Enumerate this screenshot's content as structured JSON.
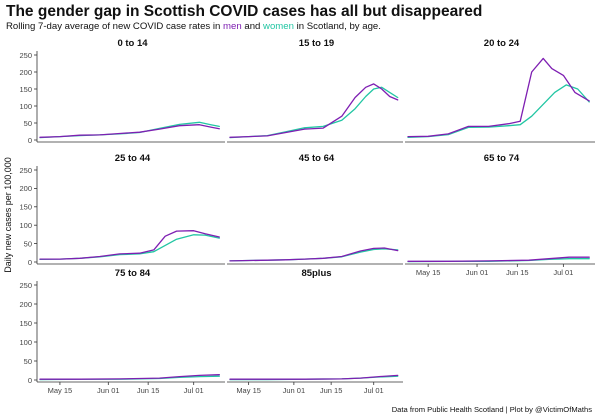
{
  "header": {
    "title": "The gender gap in Scottish COVID cases has all but disappeared",
    "subtitle_prefix": "Rolling 7-day average of new COVID case rates in ",
    "subtitle_men": "men",
    "subtitle_and": " and ",
    "subtitle_women": "women",
    "subtitle_suffix": " in Scotland, by age."
  },
  "caption": "Data from Public Health Scotland | Plot by @VictimOfMaths",
  "colors": {
    "men": "#7e1fb2",
    "women": "#22c6a3",
    "axis": "#333333",
    "text": "#111111"
  },
  "chart_data": {
    "type": "line",
    "ylabel": "Daily new cases per 100,000",
    "xlabel": "",
    "ylim": [
      0,
      250
    ],
    "yticks": [
      0,
      50,
      100,
      150,
      200,
      250
    ],
    "xlim": [
      "2021-05-08",
      "2021-07-12"
    ],
    "xticks": [
      {
        "date": "2021-05-15",
        "label": "May 15"
      },
      {
        "date": "2021-06-01",
        "label": "Jun 01"
      },
      {
        "date": "2021-06-15",
        "label": "Jun 15"
      },
      {
        "date": "2021-07-01",
        "label": "Jul 01"
      }
    ],
    "series_names": [
      "men",
      "women"
    ],
    "panels": [
      {
        "name": "0 to 14",
        "men": [
          [
            "2021-05-08",
            8
          ],
          [
            "2021-05-15",
            10
          ],
          [
            "2021-05-22",
            14
          ],
          [
            "2021-05-29",
            15
          ],
          [
            "2021-06-05",
            19
          ],
          [
            "2021-06-12",
            23
          ],
          [
            "2021-06-19",
            32
          ],
          [
            "2021-06-26",
            42
          ],
          [
            "2021-07-03",
            45
          ],
          [
            "2021-07-07",
            38
          ],
          [
            "2021-07-10",
            33
          ]
        ],
        "women": [
          [
            "2021-05-08",
            7
          ],
          [
            "2021-05-15",
            10
          ],
          [
            "2021-05-22",
            13
          ],
          [
            "2021-05-29",
            15
          ],
          [
            "2021-06-05",
            18
          ],
          [
            "2021-06-12",
            22
          ],
          [
            "2021-06-19",
            34
          ],
          [
            "2021-06-26",
            46
          ],
          [
            "2021-07-03",
            52
          ],
          [
            "2021-07-07",
            45
          ],
          [
            "2021-07-10",
            40
          ]
        ]
      },
      {
        "name": "15 to 19",
        "men": [
          [
            "2021-05-08",
            8
          ],
          [
            "2021-05-15",
            10
          ],
          [
            "2021-05-22",
            12
          ],
          [
            "2021-05-29",
            22
          ],
          [
            "2021-06-05",
            32
          ],
          [
            "2021-06-12",
            35
          ],
          [
            "2021-06-19",
            70
          ],
          [
            "2021-06-24",
            125
          ],
          [
            "2021-06-28",
            155
          ],
          [
            "2021-07-01",
            165
          ],
          [
            "2021-07-04",
            150
          ],
          [
            "2021-07-07",
            128
          ],
          [
            "2021-07-10",
            118
          ]
        ],
        "women": [
          [
            "2021-05-08",
            7
          ],
          [
            "2021-05-15",
            10
          ],
          [
            "2021-05-22",
            13
          ],
          [
            "2021-05-29",
            24
          ],
          [
            "2021-06-05",
            36
          ],
          [
            "2021-06-12",
            40
          ],
          [
            "2021-06-19",
            58
          ],
          [
            "2021-06-24",
            92
          ],
          [
            "2021-06-28",
            128
          ],
          [
            "2021-07-01",
            150
          ],
          [
            "2021-07-04",
            155
          ],
          [
            "2021-07-07",
            140
          ],
          [
            "2021-07-10",
            125
          ]
        ]
      },
      {
        "name": "20 to 24",
        "men": [
          [
            "2021-05-08",
            10
          ],
          [
            "2021-05-15",
            11
          ],
          [
            "2021-05-22",
            18
          ],
          [
            "2021-05-29",
            40
          ],
          [
            "2021-06-05",
            40
          ],
          [
            "2021-06-12",
            48
          ],
          [
            "2021-06-16",
            55
          ],
          [
            "2021-06-20",
            200
          ],
          [
            "2021-06-24",
            240
          ],
          [
            "2021-06-27",
            210
          ],
          [
            "2021-07-01",
            190
          ],
          [
            "2021-07-05",
            140
          ],
          [
            "2021-07-10",
            115
          ]
        ],
        "women": [
          [
            "2021-05-08",
            8
          ],
          [
            "2021-05-15",
            10
          ],
          [
            "2021-05-22",
            16
          ],
          [
            "2021-05-29",
            37
          ],
          [
            "2021-06-05",
            38
          ],
          [
            "2021-06-12",
            42
          ],
          [
            "2021-06-16",
            45
          ],
          [
            "2021-06-20",
            70
          ],
          [
            "2021-06-24",
            105
          ],
          [
            "2021-06-28",
            140
          ],
          [
            "2021-07-02",
            162
          ],
          [
            "2021-07-06",
            150
          ],
          [
            "2021-07-10",
            112
          ]
        ]
      },
      {
        "name": "25 to 44",
        "men": [
          [
            "2021-05-08",
            8
          ],
          [
            "2021-05-15",
            8
          ],
          [
            "2021-05-22",
            10
          ],
          [
            "2021-05-29",
            15
          ],
          [
            "2021-06-05",
            22
          ],
          [
            "2021-06-12",
            24
          ],
          [
            "2021-06-17",
            33
          ],
          [
            "2021-06-21",
            70
          ],
          [
            "2021-06-25",
            84
          ],
          [
            "2021-07-01",
            85
          ],
          [
            "2021-07-05",
            77
          ],
          [
            "2021-07-10",
            68
          ]
        ],
        "women": [
          [
            "2021-05-08",
            7
          ],
          [
            "2021-05-15",
            8
          ],
          [
            "2021-05-22",
            10
          ],
          [
            "2021-05-29",
            14
          ],
          [
            "2021-06-05",
            20
          ],
          [
            "2021-06-12",
            22
          ],
          [
            "2021-06-17",
            28
          ],
          [
            "2021-06-21",
            45
          ],
          [
            "2021-06-25",
            62
          ],
          [
            "2021-07-01",
            74
          ],
          [
            "2021-07-05",
            73
          ],
          [
            "2021-07-10",
            65
          ]
        ]
      },
      {
        "name": "45 to 64",
        "men": [
          [
            "2021-05-08",
            3
          ],
          [
            "2021-05-15",
            4
          ],
          [
            "2021-05-22",
            5
          ],
          [
            "2021-05-29",
            6
          ],
          [
            "2021-06-05",
            8
          ],
          [
            "2021-06-12",
            10
          ],
          [
            "2021-06-19",
            15
          ],
          [
            "2021-06-26",
            30
          ],
          [
            "2021-07-01",
            37
          ],
          [
            "2021-07-05",
            38
          ],
          [
            "2021-07-10",
            31
          ]
        ],
        "women": [
          [
            "2021-05-08",
            3
          ],
          [
            "2021-05-15",
            4
          ],
          [
            "2021-05-22",
            5
          ],
          [
            "2021-05-29",
            6
          ],
          [
            "2021-06-05",
            8
          ],
          [
            "2021-06-12",
            10
          ],
          [
            "2021-06-19",
            14
          ],
          [
            "2021-06-26",
            27
          ],
          [
            "2021-07-01",
            34
          ],
          [
            "2021-07-05",
            36
          ],
          [
            "2021-07-10",
            33
          ]
        ]
      },
      {
        "name": "65 to 74",
        "men": [
          [
            "2021-05-08",
            2
          ],
          [
            "2021-05-22",
            2
          ],
          [
            "2021-06-05",
            3
          ],
          [
            "2021-06-19",
            5
          ],
          [
            "2021-06-26",
            9
          ],
          [
            "2021-07-03",
            13
          ],
          [
            "2021-07-10",
            13
          ]
        ],
        "women": [
          [
            "2021-05-08",
            1
          ],
          [
            "2021-05-22",
            2
          ],
          [
            "2021-06-05",
            2
          ],
          [
            "2021-06-19",
            4
          ],
          [
            "2021-06-26",
            7
          ],
          [
            "2021-07-03",
            9
          ],
          [
            "2021-07-10",
            9
          ]
        ]
      },
      {
        "name": "75 to 84",
        "men": [
          [
            "2021-05-08",
            2
          ],
          [
            "2021-05-22",
            2
          ],
          [
            "2021-06-05",
            3
          ],
          [
            "2021-06-19",
            5
          ],
          [
            "2021-06-26",
            9
          ],
          [
            "2021-07-03",
            12
          ],
          [
            "2021-07-10",
            14
          ]
        ],
        "women": [
          [
            "2021-05-08",
            1
          ],
          [
            "2021-05-22",
            2
          ],
          [
            "2021-06-05",
            2
          ],
          [
            "2021-06-19",
            4
          ],
          [
            "2021-06-26",
            7
          ],
          [
            "2021-07-03",
            9
          ],
          [
            "2021-07-10",
            10
          ]
        ]
      },
      {
        "name": "85plus",
        "men": [
          [
            "2021-05-08",
            2
          ],
          [
            "2021-05-22",
            2
          ],
          [
            "2021-06-05",
            2
          ],
          [
            "2021-06-19",
            3
          ],
          [
            "2021-06-26",
            5
          ],
          [
            "2021-07-03",
            9
          ],
          [
            "2021-07-10",
            12
          ]
        ],
        "women": [
          [
            "2021-05-08",
            1
          ],
          [
            "2021-05-22",
            1
          ],
          [
            "2021-06-05",
            2
          ],
          [
            "2021-06-19",
            3
          ],
          [
            "2021-06-26",
            5
          ],
          [
            "2021-07-03",
            8
          ],
          [
            "2021-07-10",
            10
          ]
        ]
      }
    ]
  }
}
